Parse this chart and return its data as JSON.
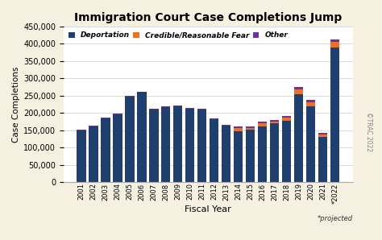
{
  "title": "Immigration Court Case Completions Jump",
  "xlabel": "Fiscal Year",
  "ylabel": "Case Completions",
  "background_color": "#f5f0e0",
  "plot_bg_color": "#ffffff",
  "years": [
    "2001",
    "2002",
    "2003",
    "2004",
    "2005",
    "2006",
    "2007",
    "2008",
    "2009",
    "2010",
    "2011",
    "2012",
    "2013",
    "2014",
    "2015",
    "2016",
    "2017",
    "2018",
    "2019",
    "2020",
    "2021",
    "*2022"
  ],
  "deportation": [
    150000,
    162000,
    185000,
    195000,
    248000,
    260000,
    210000,
    217000,
    220000,
    213000,
    210000,
    182000,
    163000,
    148000,
    152000,
    162000,
    170000,
    178000,
    255000,
    220000,
    130000,
    390000
  ],
  "credible_fear": [
    0,
    0,
    0,
    0,
    0,
    0,
    0,
    0,
    0,
    0,
    0,
    0,
    0,
    8000,
    5000,
    8000,
    5000,
    8000,
    13000,
    10000,
    8000,
    15000
  ],
  "other": [
    2000,
    2000,
    2000,
    2000,
    2000,
    2000,
    2000,
    2000,
    2000,
    2000,
    2000,
    2000,
    2000,
    5000,
    5000,
    5000,
    5000,
    5000,
    7000,
    7000,
    5000,
    7000
  ],
  "deportation_color": "#1f3f6e",
  "credible_fear_color": "#f07020",
  "other_color": "#7030a0",
  "ylim": [
    0,
    450000
  ],
  "yticks": [
    0,
    50000,
    100000,
    150000,
    200000,
    250000,
    300000,
    350000,
    400000,
    450000
  ],
  "legend_labels": [
    "Deportation",
    "Credible/Reasonable Fear",
    "Other"
  ],
  "watermark": "©TRAC 2022",
  "projected_note": "*projected"
}
